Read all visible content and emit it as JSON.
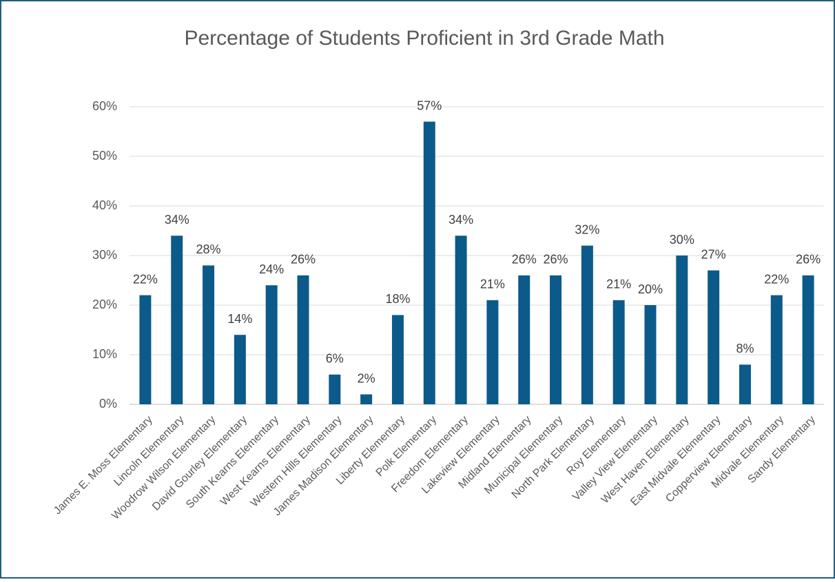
{
  "chart_data": {
    "type": "bar",
    "title": "Percentage of Students Proficient in 3rd Grade Math",
    "categories": [
      "James E. Moss Elementary",
      "Lincoln Elementary",
      "Woodrow Wilson Elementary",
      "David Gourley Elementary",
      "South Kearns Elementary",
      "West Kearns Elementary",
      "Western Hills Elementary",
      "James Madison Elementary",
      "Liberty Elementary",
      "Polk Elementary",
      "Freedom Elementary",
      "Lakeview Elementary",
      "Midland Elementary",
      "Municipal Elementary",
      "North Park Elementary",
      "Roy Elementary",
      "Valley View Elementary",
      "West Haven Elementary",
      "East Midvale Elementary",
      "Copperview Elementary",
      "Midvale Elementary",
      "Sandy Elementary"
    ],
    "values": [
      22,
      34,
      28,
      14,
      24,
      26,
      6,
      2,
      18,
      57,
      34,
      21,
      26,
      26,
      32,
      21,
      20,
      30,
      27,
      8,
      22,
      26
    ],
    "value_labels": [
      "22%",
      "34%",
      "28%",
      "14%",
      "24%",
      "26%",
      "6%",
      "2%",
      "18%",
      "57%",
      "34%",
      "21%",
      "26%",
      "26%",
      "32%",
      "21%",
      "20%",
      "30%",
      "27%",
      "8%",
      "22%",
      "26%"
    ],
    "color": "#0b5a8a",
    "ylim": [
      0,
      60
    ],
    "yticks": [
      {
        "value": 0,
        "label": "0%"
      },
      {
        "value": 10,
        "label": "10%"
      },
      {
        "value": 20,
        "label": "20%"
      },
      {
        "value": 30,
        "label": "30%"
      },
      {
        "value": 40,
        "label": "40%"
      },
      {
        "value": 50,
        "label": "50%"
      },
      {
        "value": 60,
        "label": "60%"
      }
    ],
    "grid": true
  }
}
